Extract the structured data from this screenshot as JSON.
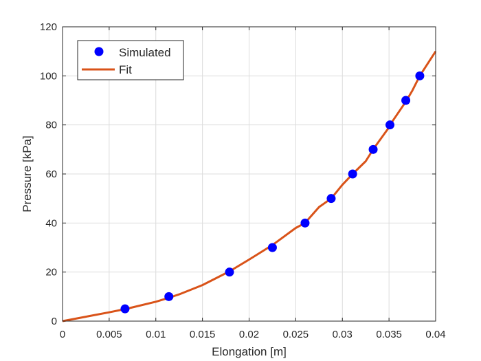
{
  "chart_data": {
    "type": "scatter",
    "xlabel": "Elongation [m]",
    "ylabel": "Pressure [kPa]",
    "xlim": [
      0,
      0.04
    ],
    "ylim": [
      0,
      120
    ],
    "x_ticks": [
      0,
      0.005,
      0.01,
      0.015,
      0.02,
      0.025,
      0.03,
      0.035,
      0.04
    ],
    "x_tick_labels": [
      "0",
      "0.005",
      "0.01",
      "0.015",
      "0.02",
      "0.025",
      "0.03",
      "0.035",
      "0.04"
    ],
    "y_ticks": [
      0,
      20,
      40,
      60,
      80,
      100,
      120
    ],
    "y_tick_labels": [
      "0",
      "20",
      "40",
      "60",
      "80",
      "100",
      "120"
    ],
    "grid": true,
    "legend_position": "top-left",
    "series": [
      {
        "name": "Simulated",
        "kind": "scatter",
        "color": "#0000ff",
        "x": [
          0.0067,
          0.0114,
          0.0179,
          0.0225,
          0.026,
          0.0288,
          0.0311,
          0.0333,
          0.0351,
          0.0368,
          0.0383
        ],
        "y": [
          5,
          10,
          20,
          30,
          40,
          50,
          60,
          70,
          80,
          90,
          100
        ]
      },
      {
        "name": "Fit",
        "kind": "line",
        "color": "#d95319",
        "x": [
          0,
          0.0025,
          0.005,
          0.0067,
          0.0075,
          0.01,
          0.0114,
          0.0125,
          0.015,
          0.0175,
          0.0179,
          0.02,
          0.0225,
          0.025,
          0.026,
          0.0275,
          0.0288,
          0.03,
          0.0311,
          0.0325,
          0.0333,
          0.035,
          0.0351,
          0.0368,
          0.0375,
          0.0383,
          0.04
        ],
        "y": [
          0,
          1.8,
          3.6,
          4.9,
          5.6,
          7.9,
          9.5,
          10.9,
          14.7,
          19.5,
          20.3,
          25.1,
          31.0,
          38.0,
          40.0,
          46.5,
          50.0,
          55.6,
          60.0,
          65.2,
          70.0,
          79.0,
          80.0,
          89.5,
          94.0,
          100.0,
          110.0
        ]
      }
    ]
  }
}
